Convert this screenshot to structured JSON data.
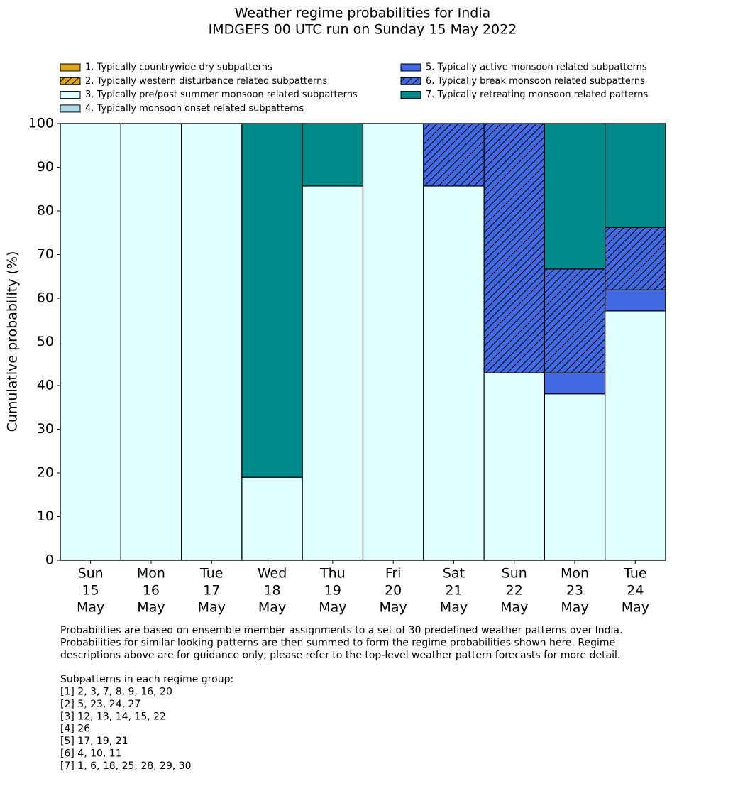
{
  "chart_data": {
    "type": "stacked_bar",
    "title": "Weather regime probabilities for India",
    "subtitle": "IMDGEFS 00 UTC run on Sunday 15 May 2022",
    "ylabel": "Cumulative probability (%)",
    "categories": [
      [
        "Sun",
        "15",
        "May"
      ],
      [
        "Mon",
        "16",
        "May"
      ],
      [
        "Tue",
        "17",
        "May"
      ],
      [
        "Wed",
        "18",
        "May"
      ],
      [
        "Thu",
        "19",
        "May"
      ],
      [
        "Fri",
        "20",
        "May"
      ],
      [
        "Sat",
        "21",
        "May"
      ],
      [
        "Sun",
        "22",
        "May"
      ],
      [
        "Mon",
        "23",
        "May"
      ],
      [
        "Tue",
        "24",
        "May"
      ]
    ],
    "series": [
      {
        "name": "1. Typically countrywide dry subpatterns",
        "color": "#daa520",
        "hatch": false,
        "values": [
          0,
          0,
          0,
          0,
          0,
          0,
          0,
          0,
          0,
          0
        ]
      },
      {
        "name": "2. Typically western disturbance related subpatterns",
        "color": "#daa520",
        "hatch": true,
        "values": [
          0,
          0,
          0,
          0,
          0,
          0,
          0,
          0,
          0,
          0
        ]
      },
      {
        "name": "3. Typically pre/post summer monsoon related subpatterns",
        "color": "#e0ffff",
        "hatch": false,
        "values": [
          100,
          100,
          100,
          19,
          85.7,
          100,
          85.7,
          42.9,
          38.1,
          57.1
        ]
      },
      {
        "name": "4. Typically monsoon onset related subpatterns",
        "color": "#add8e6",
        "hatch": false,
        "values": [
          0,
          0,
          0,
          0,
          0,
          0,
          0,
          0,
          0,
          0
        ]
      },
      {
        "name": "5. Typically active monsoon related subpatterns",
        "color": "#4169e1",
        "hatch": false,
        "values": [
          0,
          0,
          0,
          0,
          0,
          0,
          0,
          0,
          4.8,
          4.8
        ]
      },
      {
        "name": "6. Typically break monsoon related subpatterns",
        "color": "#4169e1",
        "hatch": true,
        "values": [
          0,
          0,
          0,
          0,
          0,
          0,
          14.3,
          57.1,
          23.8,
          14.3
        ]
      },
      {
        "name": "7. Typically retreating monsoon related patterns",
        "color": "#008b8b",
        "hatch": false,
        "values": [
          0,
          0,
          0,
          81,
          14.3,
          0,
          0,
          0,
          33.3,
          23.8
        ]
      }
    ],
    "ylim": [
      0,
      100
    ],
    "yticks": [
      0,
      10,
      20,
      30,
      40,
      50,
      60,
      70,
      80,
      90,
      100
    ],
    "notes": [
      "Probabilities are based on ensemble member assignments to a set of 30 predefined weather patterns over India.",
      "Probabilities for similar looking patterns are then summed to form the regime probabilities shown here. Regime",
      "descriptions above are for guidance only; please refer to the top-level weather pattern forecasts for more detail."
    ],
    "subpatterns_title": "Subpatterns in each regime group:",
    "subpatterns": [
      "[1] 2, 3, 7, 8, 9, 16, 20",
      "[2] 5, 23, 24, 27",
      "[3] 12, 13, 14, 15, 22",
      "[4] 26",
      "[5] 17, 19, 21",
      "[6] 4, 10, 11",
      "[7] 1, 6, 18, 25, 28, 29, 30"
    ]
  }
}
